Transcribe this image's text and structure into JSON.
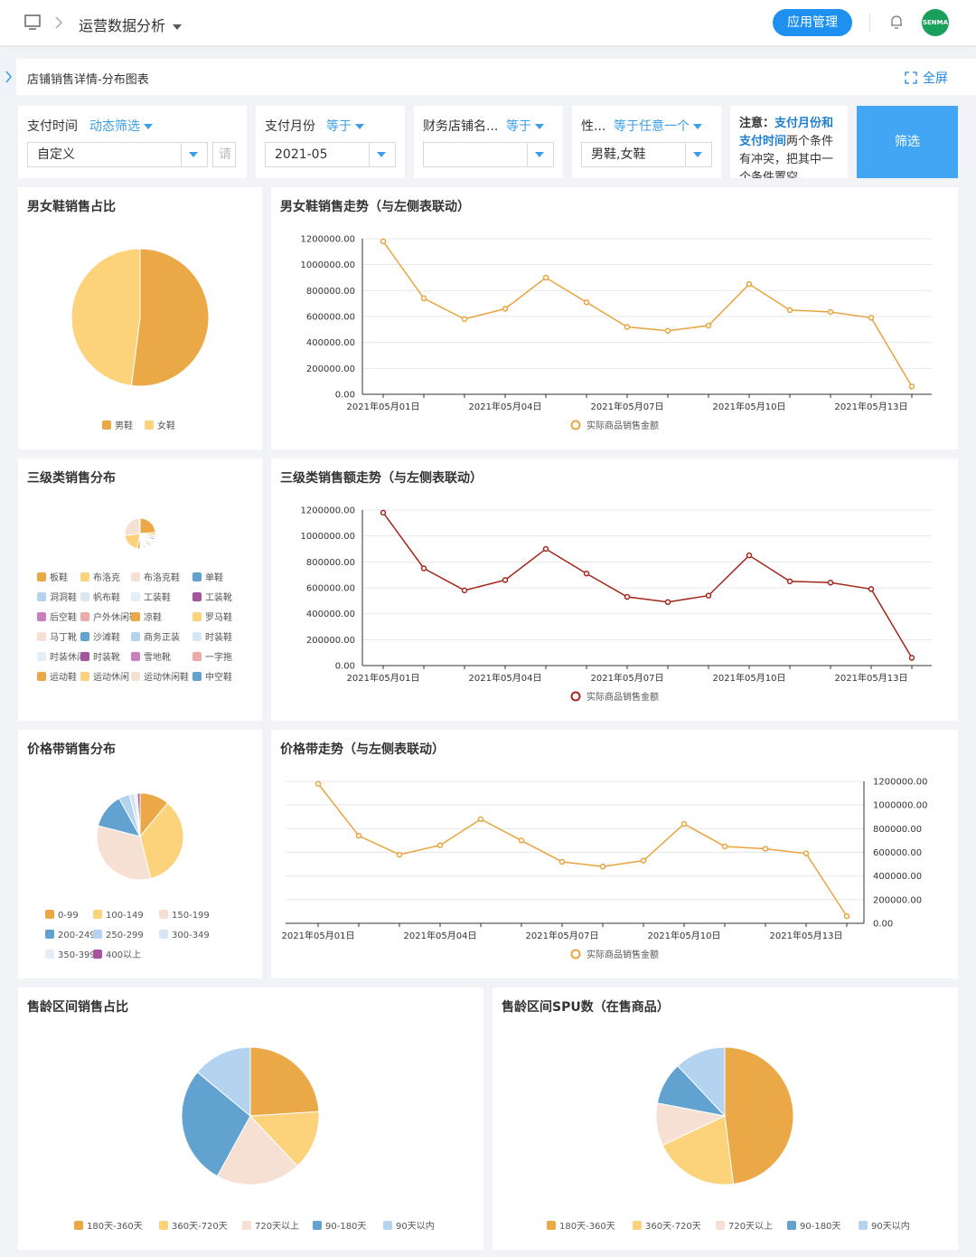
{
  "header": {
    "title": "运营数据分析",
    "button": "应用管理",
    "avatar": "SENMA"
  },
  "subheader": {
    "title": "店铺销售详情-分布图表",
    "fullscreen": "全屏"
  },
  "filters": [
    {
      "label": "支付时间",
      "operator": "动态筛选",
      "value": "自定义",
      "placeholder": "请"
    },
    {
      "label": "支付月份",
      "operator": "等于",
      "value": "2021-05"
    },
    {
      "label": "财务店铺名...",
      "operator": "等于"
    },
    {
      "label": "性...",
      "operator": "等于任意一个",
      "value": "男鞋,女鞋"
    }
  ],
  "note": {
    "prefix": "注意：",
    "highlight": "支付月份和支付时间",
    "text": "两个条件有冲突，把其中一个条件置空"
  },
  "filter_button": "筛选",
  "chart_data": [
    {
      "type": "pie",
      "title": "男女鞋销售占比",
      "categories": [
        "男鞋",
        "女鞋"
      ],
      "values": [
        52,
        48
      ],
      "colors": [
        "#eaa846",
        "#fcd27b"
      ]
    },
    {
      "type": "line",
      "title": "男女鞋销售走势（与左侧表联动）",
      "y_axis_position": "left",
      "grid": true,
      "categories": [
        "2021年05月01日",
        null,
        null,
        "2021年05月04日",
        null,
        null,
        "2021年05月07日",
        null,
        null,
        "2021年05月10日",
        null,
        null,
        "2021年05月13日",
        null
      ],
      "series": [
        {
          "name": "实际商品销售金额",
          "color": "#e9a43f",
          "values": [
            1180000,
            740000,
            580000,
            660000,
            900000,
            710000,
            520000,
            490000,
            530000,
            850000,
            650000,
            635000,
            590000,
            60000
          ]
        }
      ],
      "ylim": [
        0,
        1200000
      ],
      "yticks": [
        {
          "value": 0,
          "label": "0.00"
        },
        {
          "value": 200000,
          "label": "200000.00"
        },
        {
          "value": 400000,
          "label": "400000.00"
        },
        {
          "value": 600000,
          "label": "600000.00"
        },
        {
          "value": 800000,
          "label": "800000.00"
        },
        {
          "value": 1000000,
          "label": "1000000.00"
        },
        {
          "value": 1200000,
          "label": "1200000.00"
        }
      ]
    },
    {
      "type": "pie",
      "title": "三级类销售分布",
      "categories": [
        "板鞋",
        "布洛克",
        "布洛克鞋",
        "单鞋",
        "洞洞鞋",
        "帆布鞋",
        "工装鞋",
        "工装靴",
        "后空鞋",
        "户外休闲鞋",
        "凉鞋",
        "罗马鞋",
        "马丁靴",
        "沙滩鞋",
        "商务正装",
        "时装鞋",
        "时装休闲",
        "时装靴",
        "雪地靴",
        "一字拖",
        "运动鞋",
        "运动休闲",
        "运动休闲鞋",
        "中空鞋"
      ],
      "values": [
        24,
        3,
        3,
        2,
        1,
        1,
        1,
        1,
        1,
        1,
        2,
        1,
        1,
        1,
        1,
        2,
        1,
        1,
        1,
        1,
        3,
        20,
        26,
        1
      ],
      "colors": [
        "#eaa846",
        "#fcd27b",
        "#f6e0d3",
        "#62a2d0",
        "#b3d3f0",
        "#d8e6f3",
        "#e4eef8",
        "#a5559e",
        "#cc7fbf",
        "#eeaaa8",
        "#eaa846",
        "#fcd27b",
        "#f6e0d3",
        "#62a2d0",
        "#b3d3f0",
        "#d8e6f3",
        "#e4eef8",
        "#a5559e",
        "#cc7fbf",
        "#eeaaa8",
        "#eaa846",
        "#fcd27b",
        "#f6e0d3",
        "#62a2d0"
      ]
    },
    {
      "type": "line",
      "title": "三级类销售额走势（与左侧表联动）",
      "y_axis_position": "left",
      "grid": true,
      "categories": [
        "2021年05月01日",
        null,
        null,
        "2021年05月04日",
        null,
        null,
        "2021年05月07日",
        null,
        null,
        "2021年05月10日",
        null,
        null,
        "2021年05月13日",
        null
      ],
      "series": [
        {
          "name": "实际商品销售金额",
          "color": "#a3271b",
          "values": [
            1180000,
            750000,
            580000,
            660000,
            900000,
            710000,
            530000,
            490000,
            540000,
            850000,
            650000,
            640000,
            590000,
            60000
          ]
        }
      ],
      "ylim": [
        0,
        1200000
      ],
      "yticks": [
        {
          "value": 0,
          "label": "0.00"
        },
        {
          "value": 200000,
          "label": "200000.00"
        },
        {
          "value": 400000,
          "label": "400000.00"
        },
        {
          "value": 600000,
          "label": "600000.00"
        },
        {
          "value": 800000,
          "label": "800000.00"
        },
        {
          "value": 1000000,
          "label": "1000000.00"
        },
        {
          "value": 1200000,
          "label": "1200000.00"
        }
      ]
    },
    {
      "type": "pie",
      "title": "价格带销售分布",
      "categories": [
        "0-99",
        "100-149",
        "150-199",
        "200-249",
        "250-299",
        "300-349",
        "350-399",
        "400以上"
      ],
      "values": [
        11,
        35,
        33,
        13,
        4,
        2,
        1,
        1
      ],
      "colors": [
        "#eaa846",
        "#fcd27b",
        "#f6e0d3",
        "#62a2d0",
        "#b3d3f0",
        "#d8e6f3",
        "#e4eef8",
        "#a5559e"
      ]
    },
    {
      "type": "line",
      "title": "价格带走势（与左侧表联动）",
      "y_axis_position": "right",
      "grid": true,
      "categories": [
        "2021年05月01日",
        null,
        null,
        "2021年05月04日",
        null,
        null,
        "2021年05月07日",
        null,
        null,
        "2021年05月10日",
        null,
        null,
        "2021年05月13日",
        null
      ],
      "series": [
        {
          "name": "实际商品销售金额",
          "color": "#e9a43f",
          "values": [
            1180000,
            740000,
            580000,
            660000,
            880000,
            700000,
            520000,
            480000,
            530000,
            840000,
            650000,
            630000,
            590000,
            60000
          ]
        }
      ],
      "ylim": [
        0,
        1200000
      ],
      "yticks": [
        {
          "value": 0,
          "label": "0.00"
        },
        {
          "value": 200000,
          "label": "200000.00"
        },
        {
          "value": 400000,
          "label": "400000.00"
        },
        {
          "value": 600000,
          "label": "600000.00"
        },
        {
          "value": 800000,
          "label": "800000.00"
        },
        {
          "value": 1000000,
          "label": "1000000.00"
        },
        {
          "value": 1200000,
          "label": "1200000.00"
        }
      ]
    },
    {
      "type": "pie",
      "title": "售龄区间销售占比",
      "categories": [
        "180天-360天",
        "360天-720天",
        "720天以上",
        "90-180天",
        "90天以内"
      ],
      "values": [
        24,
        14,
        20,
        28,
        14
      ],
      "colors": [
        "#eaa846",
        "#fcd27b",
        "#f6e0d3",
        "#62a2d0",
        "#b3d3f0"
      ]
    },
    {
      "type": "pie",
      "title": "售龄区间SPU数（在售商品）",
      "categories": [
        "180天-360天",
        "360天-720天",
        "720天以上",
        "90-180天",
        "90天以内"
      ],
      "values": [
        48,
        20,
        10,
        10,
        12
      ],
      "colors": [
        "#eaa846",
        "#fcd27b",
        "#f6e0d3",
        "#62a2d0",
        "#b3d3f0"
      ]
    }
  ]
}
